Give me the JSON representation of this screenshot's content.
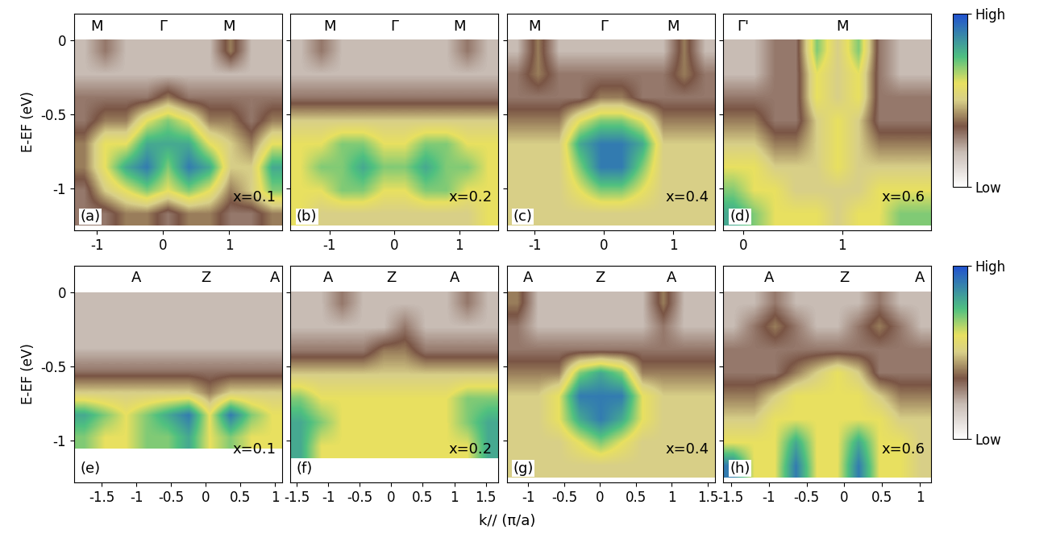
{
  "xlabel": "k// (π/a)",
  "chart_data": [
    {
      "type": "heatmap",
      "panel": "(a)",
      "annotation": "x=0.1",
      "ylabel": "E-EF (eV)",
      "points": [
        {
          "label": "M",
          "k": -1
        },
        {
          "label": "Γ",
          "k": 0
        },
        {
          "label": "M",
          "k": 1
        }
      ],
      "xlim": [
        -1.35,
        1.8
      ],
      "xticks": [
        -1,
        0,
        1
      ],
      "ylim": [
        -1.28,
        0.18
      ],
      "yticks": [
        0,
        -0.5,
        -1
      ],
      "cells_e_range": [
        -1.25,
        0
      ],
      "cells": [
        [
          2,
          3,
          2,
          2,
          2,
          2,
          2,
          4,
          2,
          2
        ],
        [
          2,
          2,
          2,
          2,
          2,
          2,
          2,
          2,
          2,
          2
        ],
        [
          3,
          3,
          3,
          3,
          4,
          3,
          3,
          3,
          3,
          3
        ],
        [
          3,
          4,
          4,
          6,
          7,
          6,
          4,
          4,
          3,
          4
        ],
        [
          4,
          6,
          6,
          8,
          8,
          8,
          6,
          5,
          4,
          6
        ],
        [
          4,
          6,
          8,
          9,
          7,
          9,
          8,
          5,
          5,
          8
        ],
        [
          3,
          5,
          6,
          7,
          6,
          7,
          6,
          4,
          5,
          7
        ],
        [
          3,
          3,
          4,
          4,
          3,
          4,
          4,
          3,
          3,
          4
        ]
      ],
      "color_range": [
        0,
        10
      ]
    },
    {
      "type": "heatmap",
      "panel": "(b)",
      "annotation": "x=0.2",
      "tick_labels": "x",
      "points": [
        {
          "label": "M",
          "k": -1
        },
        {
          "label": "Γ",
          "k": 0
        },
        {
          "label": "M",
          "k": 1
        }
      ],
      "xlim": [
        -1.6,
        1.6
      ],
      "xticks": [
        -1,
        0,
        1
      ],
      "ylim": [
        -1.28,
        0.18
      ],
      "yticks": [
        0,
        -0.5,
        -1
      ],
      "cells_e_range": [
        -1.25,
        0
      ],
      "cells": [
        [
          2,
          3,
          2,
          2,
          2,
          2,
          2,
          2,
          3,
          2
        ],
        [
          2,
          2,
          2,
          2,
          2,
          2,
          2,
          2,
          2,
          2
        ],
        [
          3,
          3,
          3,
          3,
          3,
          3,
          3,
          3,
          3,
          3
        ],
        [
          5,
          5,
          5,
          5,
          5,
          5,
          5,
          5,
          5,
          5
        ],
        [
          6,
          6,
          7,
          7,
          6,
          6,
          7,
          7,
          6,
          6
        ],
        [
          6,
          7,
          7,
          8,
          7,
          7,
          8,
          7,
          7,
          6
        ],
        [
          6,
          6,
          7,
          7,
          6,
          6,
          7,
          7,
          6,
          6
        ],
        [
          6,
          5,
          5,
          5,
          5,
          5,
          5,
          5,
          5,
          6
        ]
      ],
      "color_range": [
        0,
        10
      ]
    },
    {
      "type": "heatmap",
      "panel": "(c)",
      "annotation": "x=0.4",
      "tick_labels": "x",
      "points": [
        {
          "label": "M",
          "k": -1
        },
        {
          "label": "Γ",
          "k": 0
        },
        {
          "label": "M",
          "k": 1
        }
      ],
      "xlim": [
        -1.4,
        1.6
      ],
      "xticks": [
        -1,
        0,
        1
      ],
      "ylim": [
        -1.28,
        0.18
      ],
      "yticks": [
        0,
        -0.5,
        -1
      ],
      "cells_e_range": [
        -1.25,
        0
      ],
      "cells": [
        [
          2,
          4,
          2,
          2,
          2,
          2,
          2,
          2,
          4,
          2
        ],
        [
          3,
          4,
          3,
          3,
          3,
          3,
          3,
          3,
          4,
          3
        ],
        [
          3,
          3,
          3,
          3,
          4,
          4,
          3,
          3,
          3,
          3
        ],
        [
          4,
          4,
          4,
          6,
          7,
          7,
          6,
          4,
          4,
          4
        ],
        [
          5,
          5,
          5,
          8,
          9,
          9,
          8,
          5,
          5,
          5
        ],
        [
          5,
          5,
          5,
          7,
          9,
          9,
          7,
          5,
          5,
          5
        ],
        [
          5,
          5,
          5,
          6,
          7,
          7,
          6,
          5,
          5,
          5
        ],
        [
          5,
          5,
          5,
          5,
          5,
          5,
          5,
          5,
          5,
          5
        ]
      ],
      "color_range": [
        0,
        10
      ]
    },
    {
      "type": "heatmap",
      "panel": "(d)",
      "annotation": "x=0.6",
      "tick_labels": "x",
      "points": [
        {
          "label": "Γ'",
          "k": 0
        },
        {
          "label": "M",
          "k": 1
        }
      ],
      "xlim": [
        -0.2,
        1.9
      ],
      "xticks": [
        0,
        1
      ],
      "ylim": [
        -1.28,
        0.18
      ],
      "yticks": [
        0,
        -0.5,
        -1
      ],
      "cells_e_range": [
        -1.25,
        0
      ],
      "cells": [
        [
          2,
          2,
          3,
          3,
          7,
          5,
          7,
          3,
          2,
          2
        ],
        [
          2,
          2,
          3,
          3,
          6,
          5,
          6,
          3,
          2,
          2
        ],
        [
          3,
          3,
          3,
          3,
          6,
          5,
          6,
          3,
          3,
          3
        ],
        [
          4,
          4,
          3,
          3,
          5,
          6,
          5,
          3,
          3,
          3
        ],
        [
          5,
          5,
          4,
          4,
          5,
          6,
          5,
          4,
          4,
          4
        ],
        [
          6,
          6,
          5,
          5,
          5,
          6,
          5,
          5,
          5,
          5
        ],
        [
          7,
          6,
          6,
          5,
          5,
          5,
          5,
          6,
          6,
          6
        ],
        [
          8,
          7,
          6,
          6,
          6,
          5,
          6,
          6,
          7,
          7
        ]
      ],
      "color_range": [
        0,
        10
      ],
      "colorbar": {
        "range": [
          0,
          10
        ],
        "ticks": [
          {
            "value": 10,
            "label": "High"
          },
          {
            "value": 0,
            "label": "Low"
          }
        ]
      }
    },
    {
      "type": "heatmap",
      "panel": "(e)",
      "annotation": "x=0.1",
      "ylabel": "E-EF (eV)",
      "points": [
        {
          "label": "A",
          "k": -1
        },
        {
          "label": "Z",
          "k": 0
        },
        {
          "label": "A",
          "k": 1
        }
      ],
      "xlim": [
        -1.9,
        1.1
      ],
      "xticks": [
        -1.5,
        -1,
        -0.5,
        0,
        0.5,
        1
      ],
      "ylim": [
        -1.28,
        0.18
      ],
      "yticks": [
        0,
        -0.5,
        -1
      ],
      "cells_e_range": [
        -1.05,
        0
      ],
      "cells": [
        [
          2,
          2,
          2,
          2,
          2,
          2,
          2,
          2,
          2,
          2
        ],
        [
          2,
          2,
          2,
          2,
          2,
          2,
          2,
          2,
          2,
          2
        ],
        [
          2,
          2,
          2,
          2,
          2,
          2,
          2,
          2,
          2,
          2
        ],
        [
          3,
          3,
          3,
          3,
          3,
          3,
          3,
          3,
          3,
          3
        ],
        [
          5,
          5,
          5,
          5,
          5,
          5,
          4,
          5,
          5,
          5
        ],
        [
          8,
          7,
          6,
          7,
          8,
          9,
          6,
          9,
          7,
          6
        ],
        [
          7,
          6,
          6,
          7,
          7,
          8,
          6,
          7,
          6,
          6
        ]
      ],
      "color_range": [
        0,
        10
      ]
    },
    {
      "type": "heatmap",
      "panel": "(f)",
      "annotation": "x=0.2",
      "tick_labels": "x",
      "points": [
        {
          "label": "A",
          "k": -1
        },
        {
          "label": "Z",
          "k": 0
        },
        {
          "label": "A",
          "k": 1
        }
      ],
      "xlim": [
        -1.6,
        1.7
      ],
      "xticks": [
        -1.5,
        -1,
        -0.5,
        0,
        0.5,
        1,
        1.5
      ],
      "ylim": [
        -1.28,
        0.18
      ],
      "yticks": [
        0,
        -0.5,
        -1
      ],
      "cells_e_range": [
        -1.12,
        0
      ],
      "cells": [
        [
          2,
          2,
          3,
          2,
          2,
          2,
          2,
          2,
          3,
          2
        ],
        [
          2,
          2,
          2,
          2,
          2,
          3,
          2,
          2,
          2,
          2
        ],
        [
          3,
          3,
          3,
          3,
          4,
          4,
          3,
          3,
          3,
          3
        ],
        [
          5,
          5,
          5,
          5,
          5,
          5,
          5,
          5,
          5,
          5
        ],
        [
          7,
          6,
          6,
          6,
          6,
          6,
          6,
          6,
          7,
          7
        ],
        [
          8,
          7,
          6,
          6,
          6,
          6,
          6,
          6,
          7,
          8
        ],
        [
          8,
          6,
          6,
          6,
          6,
          6,
          6,
          6,
          6,
          8
        ]
      ],
      "color_range": [
        0,
        10
      ]
    },
    {
      "type": "heatmap",
      "panel": "(g)",
      "annotation": "x=0.4",
      "tick_labels": "x",
      "points": [
        {
          "label": "A",
          "k": -1
        },
        {
          "label": "Z",
          "k": 0
        },
        {
          "label": "A",
          "k": 1
        }
      ],
      "xlim": [
        -1.3,
        1.6
      ],
      "xticks": [
        -1,
        -0.5,
        0,
        0.5,
        1,
        1.5
      ],
      "ylim": [
        -1.28,
        0.18
      ],
      "yticks": [
        0,
        -0.5,
        -1
      ],
      "cells_e_range": [
        -1.25,
        0
      ],
      "cells": [
        [
          4,
          2,
          2,
          2,
          2,
          2,
          2,
          4,
          2,
          2
        ],
        [
          3,
          2,
          2,
          2,
          2,
          2,
          2,
          3,
          2,
          2
        ],
        [
          3,
          3,
          3,
          3,
          3,
          3,
          3,
          3,
          3,
          3
        ],
        [
          4,
          4,
          4,
          7,
          8,
          7,
          4,
          4,
          4,
          4
        ],
        [
          5,
          5,
          6,
          9,
          9,
          9,
          6,
          5,
          5,
          5
        ],
        [
          5,
          5,
          6,
          8,
          9,
          8,
          6,
          5,
          5,
          5
        ],
        [
          5,
          5,
          5,
          6,
          7,
          6,
          5,
          5,
          5,
          5
        ],
        [
          5,
          5,
          5,
          5,
          5,
          5,
          5,
          5,
          5,
          5
        ]
      ],
      "color_range": [
        0,
        10
      ]
    },
    {
      "type": "heatmap",
      "panel": "(h)",
      "annotation": "x=0.6",
      "tick_labels": "x",
      "points": [
        {
          "label": "A",
          "k": -1
        },
        {
          "label": "Z",
          "k": 0
        },
        {
          "label": "A",
          "k": 1
        }
      ],
      "xlim": [
        -1.6,
        1.15
      ],
      "xticks": [
        -1.5,
        -1,
        -0.5,
        0,
        0.5,
        1
      ],
      "ylim": [
        -1.28,
        0.18
      ],
      "yticks": [
        0,
        -0.5,
        -1
      ],
      "cells_e_range": [
        -1.25,
        0
      ],
      "cells": [
        [
          2,
          2,
          3,
          2,
          2,
          2,
          2,
          3,
          2,
          2
        ],
        [
          2,
          3,
          4,
          3,
          2,
          2,
          3,
          4,
          3,
          2
        ],
        [
          3,
          3,
          3,
          3,
          3,
          3,
          3,
          3,
          3,
          3
        ],
        [
          3,
          3,
          3,
          4,
          5,
          6,
          5,
          3,
          3,
          3
        ],
        [
          4,
          4,
          5,
          6,
          6,
          6,
          6,
          5,
          4,
          4
        ],
        [
          5,
          5,
          6,
          6,
          6,
          6,
          6,
          6,
          5,
          5
        ],
        [
          6,
          6,
          6,
          8,
          6,
          6,
          8,
          6,
          6,
          5
        ],
        [
          9,
          6,
          6,
          9,
          6,
          6,
          9,
          6,
          6,
          5
        ]
      ],
      "color_range": [
        0,
        10
      ],
      "colorbar": {
        "range": [
          0,
          10
        ],
        "ticks": [
          {
            "value": 10,
            "label": "High"
          },
          {
            "value": 0,
            "label": "Low"
          }
        ]
      }
    }
  ]
}
